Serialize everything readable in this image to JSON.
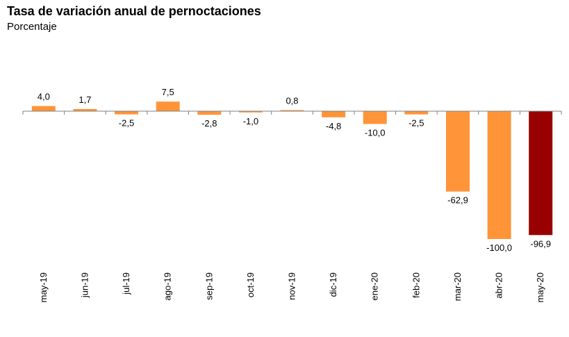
{
  "chart_data": {
    "type": "bar",
    "title": "Tasa de variación anual de pernoctaciones",
    "subtitle": "Porcentaje",
    "xlabel": "",
    "ylabel": "",
    "categories": [
      "may-19",
      "jun-19",
      "jul-19",
      "ago-19",
      "sep-19",
      "oct-19",
      "nov-19",
      "dic-19",
      "ene-20",
      "feb-20",
      "mar-20",
      "abr-20",
      "may-20"
    ],
    "values": [
      4.0,
      1.7,
      -2.5,
      7.5,
      -2.8,
      -1.0,
      0.8,
      -4.8,
      -10.0,
      -2.5,
      -62.9,
      -100.0,
      -96.9
    ],
    "value_labels": [
      "4,0",
      "1,7",
      "-2,5",
      "7,5",
      "-2,8",
      "-1,0",
      "0,8",
      "-4,8",
      "-10,0",
      "-2,5",
      "-62,9",
      "-100,0",
      "-96,9"
    ],
    "ylim": [
      -100,
      7.5
    ],
    "grid": false,
    "colors": {
      "default": "#FF9438",
      "highlight": "#990000",
      "axis": "#808080"
    },
    "highlight_index": 12
  }
}
